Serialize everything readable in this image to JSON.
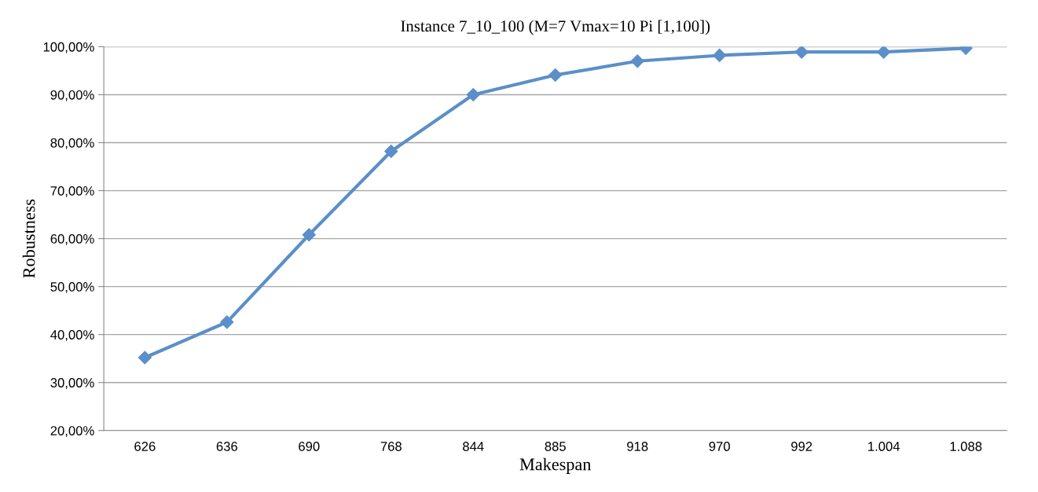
{
  "chart_data": {
    "type": "line",
    "title": "Instance 7_10_100 (M=7 Vmax=10 Pi [1,100])",
    "xlabel": "Makespan",
    "ylabel": "Robustness",
    "categories": [
      "626",
      "636",
      "690",
      "768",
      "844",
      "885",
      "918",
      "970",
      "992",
      "1.004",
      "1.088"
    ],
    "series": [
      {
        "color": "#5b8fc9",
        "values": [
          35.2,
          42.6,
          60.8,
          78.2,
          90.0,
          94.1,
          97.0,
          98.2,
          98.9,
          98.9,
          99.7
        ]
      }
    ],
    "ylim": [
      20,
      100
    ],
    "yticks": [
      {
        "value": 20,
        "label": "20,00%"
      },
      {
        "value": 30,
        "label": "30,00%"
      },
      {
        "value": 40,
        "label": "40,00%"
      },
      {
        "value": 50,
        "label": "50,00%"
      },
      {
        "value": 60,
        "label": "60,00%"
      },
      {
        "value": 70,
        "label": "70,00%"
      },
      {
        "value": 80,
        "label": "80,00%"
      },
      {
        "value": 90,
        "label": "90,00%"
      },
      {
        "value": 100,
        "label": "100,00%"
      }
    ],
    "grid": "y",
    "marker": "diamond",
    "line_style": "solid"
  }
}
